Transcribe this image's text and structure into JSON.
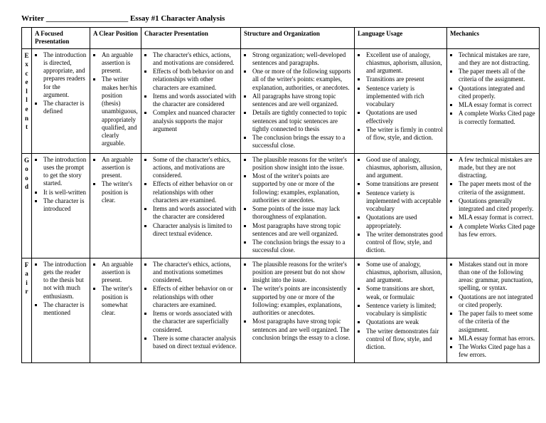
{
  "header": {
    "writer_label": "Writer",
    "blank": "_____________________",
    "title": "Essay #1 Character Analysis"
  },
  "columns": [
    "",
    "A Focused Presentation",
    "A Clear Position",
    "Character Presentation",
    "Structure and Organization",
    "Language Usage",
    "Mechanics"
  ],
  "rows": [
    {
      "label": "Excellent",
      "cells": {
        "focus": [
          "The introduction is directed, appropriate, and prepares readers for the argument.",
          "The character is defined"
        ],
        "position": [
          "An arguable assertion is present.",
          "The writer makes her/his position (thesis) unambiguous, appropriately qualified, and clearly arguable."
        ],
        "char": [
          "The character's ethics, actions, and motivations are considered.",
          "Effects of both behavior on and relationships with other characters are examined.",
          "Items and words associated with the character are considered",
          "Complex and nuanced character analysis supports the major argument"
        ],
        "struct": [
          "Strong organization; well-developed sentences and paragraphs.",
          "One or more of the following supports all of the writer's points: examples, explanation, authorities, or anecdotes.",
          "All paragraphs have strong topic sentences and are well organized.",
          "Details are tightly connected to topic sentences and topic sentences are tightly connected to thesis",
          "The conclusion brings the essay to a successful close."
        ],
        "lang": [
          "Excellent use of analogy, chiasmus, aphorism, allusion, and argument.",
          "Transitions are present",
          "Sentence variety is implemented with rich vocabulary",
          "Quotations are used effectively",
          "The writer is firmly in control of flow, style, and diction."
        ],
        "mech": [
          "Technical mistakes are rare, and they are not distracting.",
          "The paper meets all of the criteria of the assignment.",
          "Quotations integrated and cited properly.",
          "MLA essay format is correct",
          "A complete Works Cited page is correctly formatted."
        ]
      }
    },
    {
      "label": "Good",
      "cells": {
        "focus": [
          "The introduction uses the prompt to get the story started.",
          "It is well-written",
          "The character is introduced"
        ],
        "position": [
          "An arguable assertion is present.",
          "The writer's position is clear."
        ],
        "char": [
          "Some of the character's ethics, actions, and motivations are considered.",
          "Effects of either behavior on or relationships with other characters are examined.",
          "Items and words associated with the character are considered",
          "Character analysis is limited to direct textual evidence."
        ],
        "struct": [
          "The plausible reasons for the writer's position show insight into the issue.",
          "Most of the writer's points are supported by one or more of the following: examples, explanation, authorities or anecdotes.",
          "Some points of the issue may lack thoroughness of explanation.",
          "Most paragraphs have strong topic sentences and are well organized.",
          "The conclusion brings the essay to a successful close."
        ],
        "lang": [
          "Good use of analogy, chiasmus, aphorism, allusion, and argument.",
          "Some transitions are present",
          "Sentence variety is implemented with acceptable vocabulary",
          "Quotations are used appropriately.",
          "The writer demonstrates good control of flow, style, and diction."
        ],
        "mech": [
          "A few technical mistakes are made, but they are not distracting.",
          "The paper meets most of the criteria of the assignment.",
          "Quotations generally integrated and cited properly.",
          "MLA essay format is correct.",
          "A complete Works Cited page has few errors."
        ]
      }
    },
    {
      "label": "Fair",
      "cells": {
        "focus": [
          "The introduction gets the reader to the thesis but not with much enthusiasm.",
          "The character is mentioned"
        ],
        "position": [
          "An arguable assertion is present.",
          "The writer's position is somewhat clear."
        ],
        "char": [
          "The character's ethics, actions, and motivations sometimes considered.",
          "Effects of either behavior on or relationships with other characters are examined.",
          "Items or words associated with the character are superficially considered.",
          "There is some character analysis based on direct textual evidence."
        ],
        "struct": [
          "The plausible reasons for the writer's position are present but do not show insight into the issue.",
          "The writer's points are inconsistently supported by one or more of the following: examples, explanations, authorities or anecdotes.",
          "Most paragraphs have strong topic sentences and are well organized. The conclusion brings the essay to a close."
        ],
        "lang": [
          "Some use of analogy, chiasmus, aphorism, allusion, and argument.",
          "Some transitions are short, weak, or formulaic",
          "Sentence variety is limited; vocabulary is simplistic",
          "Quotations are weak",
          "The writer demonstrates fair control of flow, style, and diction."
        ],
        "mech": [
          "Mistakes stand out in more than one of the following areas: grammar, punctuation, spelling, or syntax.",
          "Quotations are not integrated or cited properly.",
          "The paper fails to meet some of the criteria of the assignment.",
          "MLA essay format has errors.",
          "The Works Cited page has a few errors."
        ]
      }
    }
  ]
}
